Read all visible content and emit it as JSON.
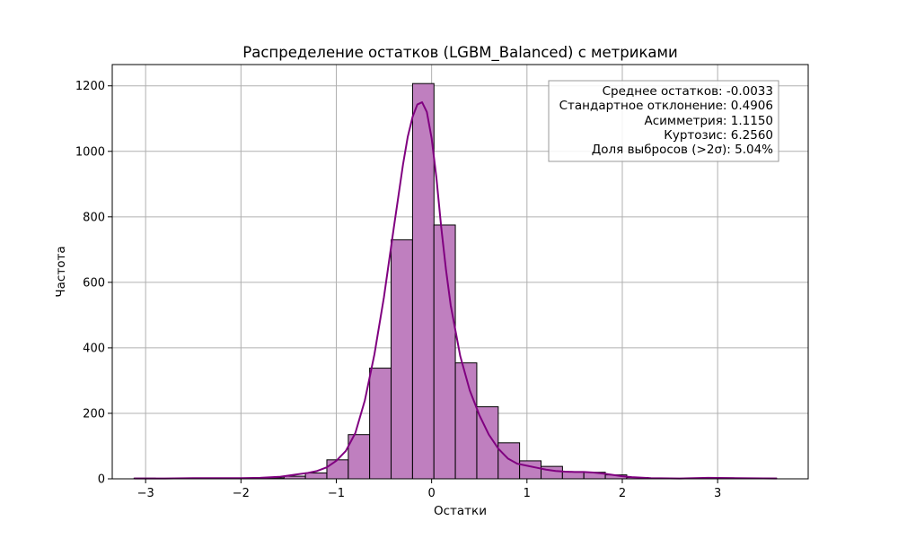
{
  "chart_data": {
    "type": "bar",
    "title": "Распределение остатков (LGBM_Balanced) с метриками",
    "xlabel": "Остатки",
    "ylabel": "Частота",
    "xlim": [
      -3.35,
      3.95
    ],
    "ylim": [
      0,
      1265
    ],
    "grid": true,
    "xticks": [
      -3,
      -2,
      -1,
      0,
      1,
      2,
      3
    ],
    "xtick_labels": [
      "−3",
      "−2",
      "−1",
      "0",
      "1",
      "2",
      "3"
    ],
    "yticks": [
      0,
      200,
      400,
      600,
      800,
      1000,
      1200
    ],
    "ytick_labels": [
      "0",
      "200",
      "400",
      "600",
      "800",
      "1000",
      "1200"
    ],
    "bin_width": 0.2247,
    "bins": [
      {
        "x0": -3.121,
        "count": 2
      },
      {
        "x0": -2.896,
        "count": 1
      },
      {
        "x0": -2.672,
        "count": 1
      },
      {
        "x0": -2.447,
        "count": 2
      },
      {
        "x0": -2.222,
        "count": 2
      },
      {
        "x0": -1.998,
        "count": 2
      },
      {
        "x0": -1.773,
        "count": 3
      },
      {
        "x0": -1.548,
        "count": 8
      },
      {
        "x0": -1.324,
        "count": 18
      },
      {
        "x0": -1.099,
        "count": 58
      },
      {
        "x0": -0.874,
        "count": 135
      },
      {
        "x0": -0.65,
        "count": 338
      },
      {
        "x0": -0.425,
        "count": 730
      },
      {
        "x0": -0.2,
        "count": 1207
      },
      {
        "x0": 0.024,
        "count": 775
      },
      {
        "x0": 0.249,
        "count": 354
      },
      {
        "x0": 0.474,
        "count": 220
      },
      {
        "x0": 0.698,
        "count": 110
      },
      {
        "x0": 0.923,
        "count": 55
      },
      {
        "x0": 1.148,
        "count": 38
      },
      {
        "x0": 1.372,
        "count": 22
      },
      {
        "x0": 1.597,
        "count": 20
      },
      {
        "x0": 1.822,
        "count": 12
      },
      {
        "x0": 2.046,
        "count": 4
      },
      {
        "x0": 2.271,
        "count": 2
      },
      {
        "x0": 2.496,
        "count": 1
      },
      {
        "x0": 2.72,
        "count": 1
      },
      {
        "x0": 2.945,
        "count": 3
      },
      {
        "x0": 3.17,
        "count": 2
      },
      {
        "x0": 3.394,
        "count": 2
      }
    ],
    "kde": {
      "x": [
        -3.12,
        -2.8,
        -2.5,
        -2.2,
        -2.0,
        -1.8,
        -1.6,
        -1.5,
        -1.4,
        -1.3,
        -1.2,
        -1.1,
        -1.0,
        -0.9,
        -0.8,
        -0.7,
        -0.6,
        -0.5,
        -0.4,
        -0.3,
        -0.25,
        -0.2,
        -0.15,
        -0.1,
        -0.05,
        0.0,
        0.05,
        0.1,
        0.15,
        0.2,
        0.3,
        0.4,
        0.5,
        0.6,
        0.7,
        0.8,
        0.9,
        1.0,
        1.1,
        1.2,
        1.3,
        1.4,
        1.5,
        1.6,
        1.7,
        1.8,
        1.9,
        2.0,
        2.1,
        2.3,
        2.6,
        2.9,
        3.2,
        3.62
      ],
      "y": [
        1,
        1,
        2,
        2,
        2,
        3,
        6,
        10,
        14,
        18,
        24,
        35,
        55,
        85,
        140,
        240,
        380,
        555,
        760,
        960,
        1045,
        1105,
        1143,
        1150,
        1120,
        1040,
        920,
        770,
        640,
        530,
        375,
        270,
        195,
        135,
        92,
        62,
        46,
        40,
        34,
        28,
        24,
        22,
        21,
        21,
        19,
        16,
        12,
        8,
        5,
        2,
        1,
        3,
        2,
        1
      ]
    },
    "bar_color": "#bf7fbf",
    "bar_edge_color": "#000000",
    "kde_color": "#800080",
    "grid_color": "#b0b0b0",
    "annotation": {
      "lines": [
        "Среднее остатков: -0.0033",
        "Стандартное отклонение: 0.4906",
        "Асимметрия: 1.1150",
        "Куртозис: 6.2560",
        "Доля выбросов (>2σ): 5.04%"
      ],
      "placement": "top-right",
      "border_color": "#999999"
    }
  }
}
